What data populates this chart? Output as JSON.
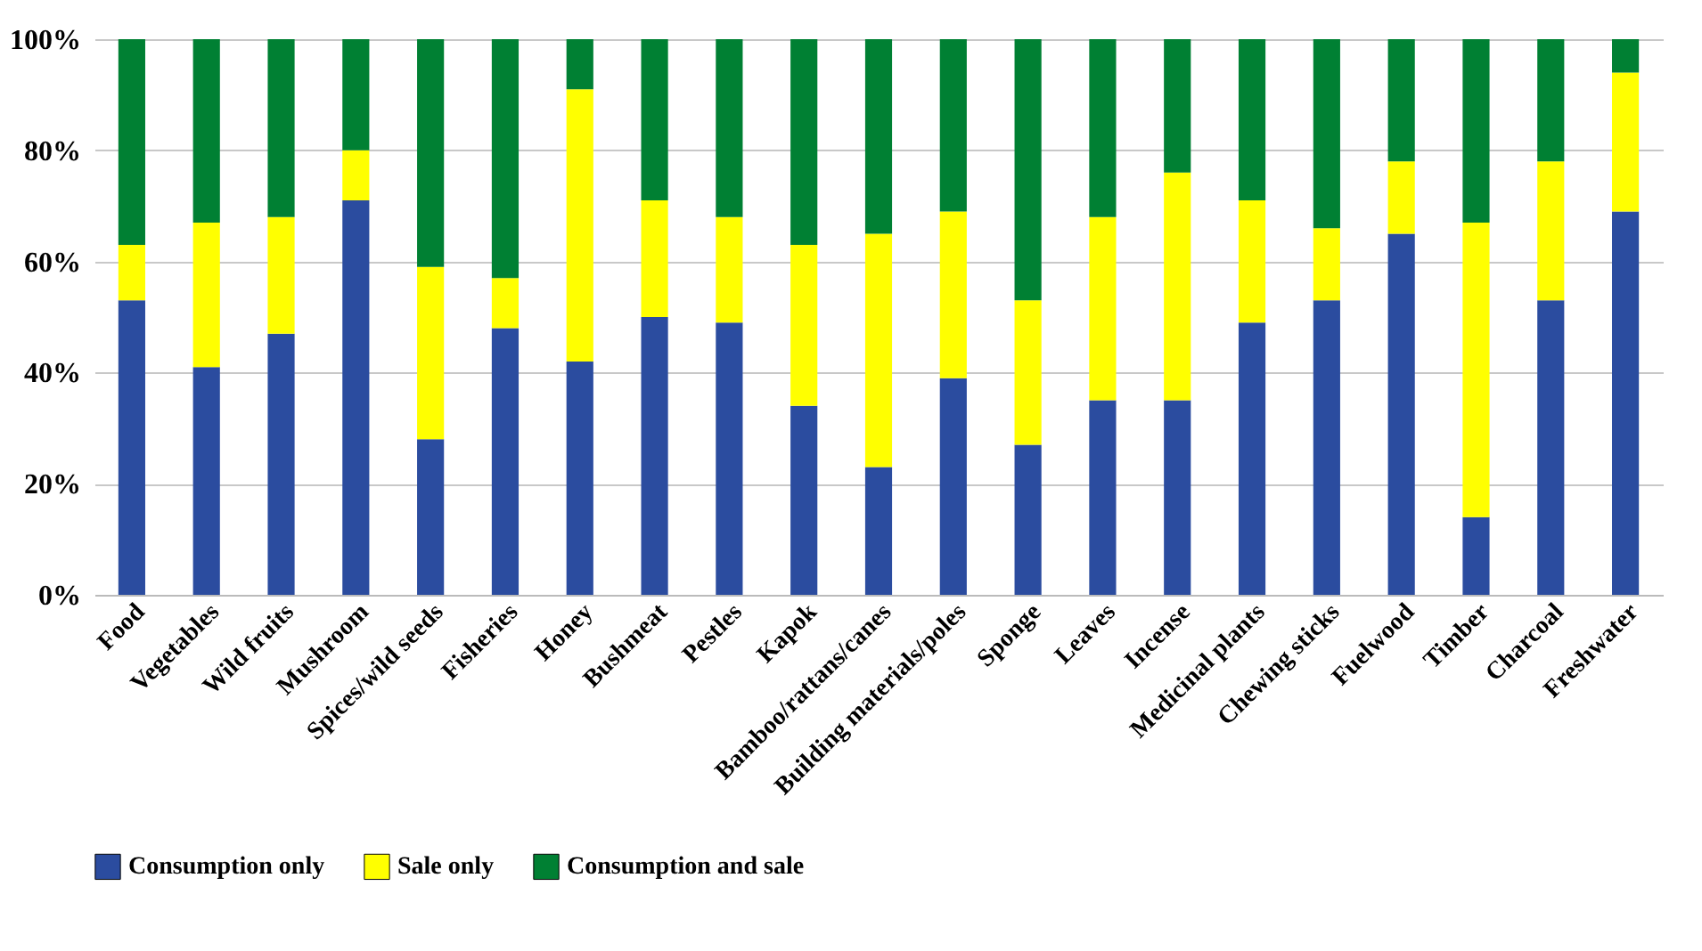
{
  "chart_data": {
    "type": "bar",
    "stacked": true,
    "categories": [
      "Food",
      "Vegetables",
      "Wild fruits",
      "Mushroom",
      "Spices/wild seeds",
      "Fisheries",
      "Honey",
      "Bushmeat",
      "Pestles",
      "Kapok",
      "Bamboo/rattans/canes",
      "Building materials/poles",
      "Sponge",
      "Leaves",
      "Incense",
      "Medicinal plants",
      "Chewing sticks",
      "Fuelwood",
      "Timber",
      "Charcoal",
      "Freshwater"
    ],
    "series": [
      {
        "name": "Consumption only",
        "color": "#2b4c9f",
        "values": [
          53,
          41,
          47,
          71,
          28,
          48,
          42,
          50,
          49,
          34,
          23,
          39,
          27,
          35,
          35,
          49,
          53,
          65,
          14,
          53,
          69
        ]
      },
      {
        "name": "Sale only",
        "color": "#ffff00",
        "values": [
          10,
          26,
          21,
          9,
          31,
          9,
          49,
          21,
          19,
          29,
          42,
          30,
          26,
          33,
          41,
          22,
          13,
          13,
          53,
          25,
          25
        ]
      },
      {
        "name": "Consumption and sale",
        "color": "#008033",
        "values": [
          37,
          33,
          32,
          20,
          41,
          43,
          9,
          29,
          32,
          37,
          35,
          31,
          47,
          32,
          24,
          29,
          34,
          22,
          33,
          22,
          6
        ]
      }
    ],
    "ylim": [
      0,
      100
    ],
    "yticks": [
      {
        "value": 0,
        "label": "0%"
      },
      {
        "value": 20,
        "label": "20%"
      },
      {
        "value": 40,
        "label": "40%"
      },
      {
        "value": 60,
        "label": "60%"
      },
      {
        "value": 80,
        "label": "80%"
      },
      {
        "value": 100,
        "label": "100%"
      }
    ],
    "grid": "y",
    "legend": "bottom"
  }
}
